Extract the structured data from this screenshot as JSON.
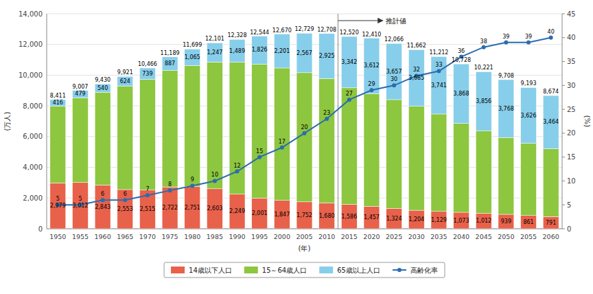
{
  "chart_data": {
    "type": "bar",
    "stacked": true,
    "grid": true,
    "legend": "bottom",
    "x_label": "(年)",
    "y_label": "(万人)",
    "y2_label": "(%)",
    "categories": [
      1950,
      1955,
      1960,
      1965,
      1970,
      1975,
      1980,
      1985,
      1990,
      1995,
      2000,
      2005,
      2010,
      2015,
      2020,
      2025,
      2030,
      2035,
      2040,
      2045,
      2050,
      2055,
      2060
    ],
    "series": [
      {
        "name": "14歳以下人口",
        "type": "bar",
        "color": "#e8614a",
        "data_labels": true,
        "values": [
          2979,
          3012,
          2843,
          2553,
          2515,
          2722,
          2751,
          2603,
          2249,
          2001,
          1847,
          1752,
          1680,
          1586,
          1457,
          1324,
          1204,
          1129,
          1073,
          1012,
          939,
          861,
          791
        ],
        "value_labels": [
          "2,979",
          "3,012",
          "2,843",
          "2,553",
          "2,515",
          "2,722",
          "2,751",
          "2,603",
          "2,249",
          "2,001",
          "1,847",
          "1,752",
          "1,680",
          "1,586",
          "1,457",
          "1,324",
          "1,204",
          "1,129",
          "1,073",
          "1,012",
          "939",
          "861",
          "791"
        ]
      },
      {
        "name": "15～64歳人口",
        "type": "bar",
        "color": "#8dc63f",
        "data_labels": false,
        "values": [
          5017,
          5517,
          6047,
          6744,
          7212,
          7581,
          7883,
          8251,
          8590,
          8716,
          8622,
          8409,
          8103,
          7592,
          7341,
          7085,
          6773,
          6343,
          5787,
          5353,
          5001,
          4706,
          4418
        ]
      },
      {
        "name": "65歳以上人口",
        "type": "bar",
        "color": "#87ceeb",
        "data_labels": true,
        "values": [
          416,
          479,
          540,
          624,
          739,
          887,
          1065,
          1247,
          1489,
          1826,
          2201,
          2567,
          2925,
          3342,
          3612,
          3657,
          3685,
          3741,
          3868,
          3856,
          3768,
          3626,
          3464
        ],
        "value_labels": [
          "416",
          "479",
          "540",
          "624",
          "739",
          "887",
          "1,065",
          "1,247",
          "1,489",
          "1,826",
          "2,201",
          "2,567",
          "2,925",
          "3,342",
          "3,612",
          "3,657",
          "3,685",
          "3,741",
          "3,868",
          "3,856",
          "3,768",
          "3,626",
          "3,464"
        ]
      },
      {
        "name": "高齢化率",
        "type": "line",
        "axis": "y2",
        "color": "#2b6cb0",
        "marker": "circle",
        "data_labels": true,
        "values": [
          5,
          5,
          6,
          6,
          7,
          8,
          9,
          10,
          12,
          15,
          17,
          20,
          23,
          27,
          29,
          30,
          32,
          33,
          36,
          38,
          39,
          39,
          40
        ]
      }
    ],
    "totals": [
      8411,
      9007,
      9430,
      9921,
      10466,
      11189,
      11699,
      12101,
      12328,
      12544,
      12670,
      12729,
      12708,
      12520,
      12410,
      12066,
      11662,
      11212,
      10728,
      10221,
      9708,
      9193,
      8674
    ],
    "totals_labels": [
      "8,411",
      "9,007",
      "9,430",
      "9,921",
      "10,466",
      "11,189",
      "11,699",
      "12,101",
      "12,328",
      "12,544",
      "12,670",
      "12,729",
      "12,708",
      "12,520",
      "12,410",
      "12,066",
      "11,662",
      "11,212",
      "10,728",
      "10,221",
      "9,708",
      "9,193",
      "8,674"
    ],
    "annotation": {
      "text": "推計値",
      "category": 2015
    },
    "ylim": [
      0,
      14000
    ],
    "yticks": [
      0,
      {
        "value": 2000,
        "label": "2,000"
      },
      {
        "value": 4000,
        "label": "4,000"
      },
      {
        "value": 6000,
        "label": "6,000"
      },
      {
        "value": 8000,
        "label": "8,000"
      },
      {
        "value": 10000,
        "label": "10,000"
      },
      {
        "value": 12000,
        "label": "12,000"
      },
      {
        "value": 14000,
        "label": "14,000"
      }
    ],
    "y2lim": [
      0,
      45
    ],
    "y2ticks": [
      0,
      5,
      10,
      15,
      20,
      25,
      30,
      35,
      40,
      45
    ]
  }
}
